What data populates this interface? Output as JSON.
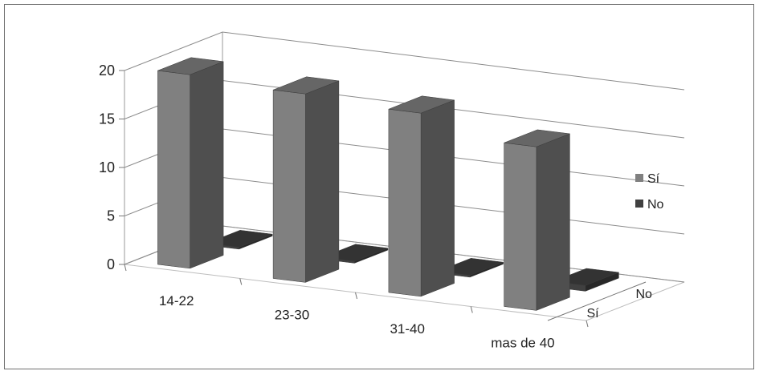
{
  "chart_data": {
    "type": "bar",
    "subtype": "3d-column",
    "title": "",
    "xlabel": "",
    "ylabel": "",
    "ylim": [
      0,
      20
    ],
    "yticks": [
      "0",
      "5",
      "10",
      "15",
      "20"
    ],
    "grid": true,
    "legend_position": "right",
    "depth_axis_labels": [
      "No",
      "Sí"
    ],
    "categories": [
      "14-22",
      "23-30",
      "31-40",
      "mas de  40"
    ],
    "series": [
      {
        "name": "Sí",
        "values": [
          20,
          19.5,
          19,
          17
        ],
        "color": "#808080"
      },
      {
        "name": "No",
        "values": [
          0.2,
          0.2,
          0.2,
          0.6
        ],
        "color": "#404040"
      }
    ]
  }
}
